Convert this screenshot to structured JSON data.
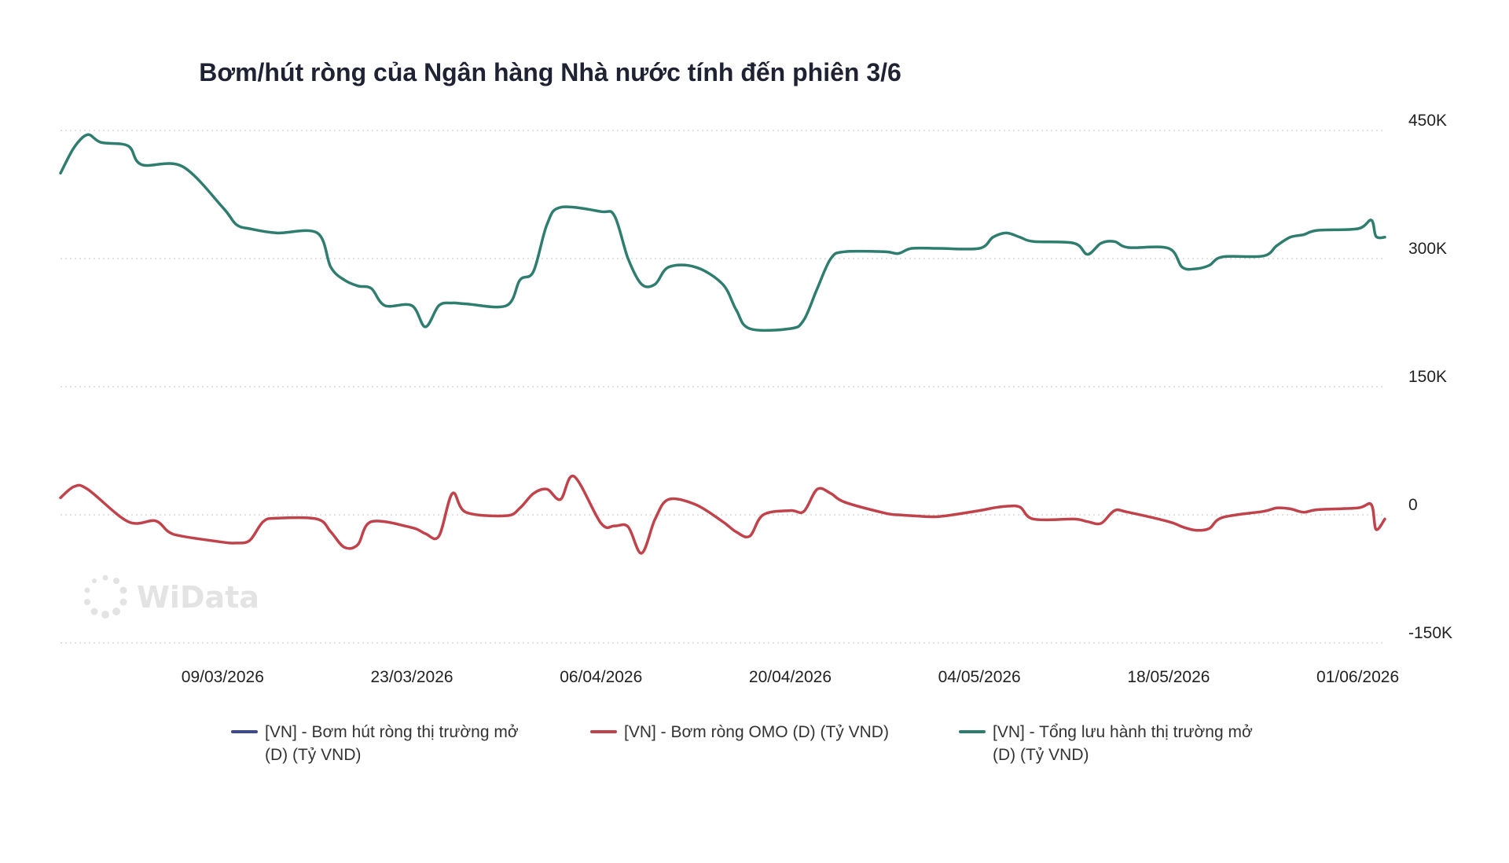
{
  "chart_data": {
    "type": "line",
    "title": "Bơm/hút ròng của Ngân hàng Nhà nước tính đến phiên 3/6",
    "xlabel": "",
    "ylabel": "",
    "x_range": [
      "2026-02-25",
      "2026-06-03"
    ],
    "ylim": [
      -150000,
      450000
    ],
    "y_ticks": [
      {
        "value": 450000,
        "label": "450K"
      },
      {
        "value": 300000,
        "label": "300K"
      },
      {
        "value": 150000,
        "label": "150K"
      },
      {
        "value": 0,
        "label": "0"
      },
      {
        "value": -150000,
        "label": "-150K"
      }
    ],
    "x_ticks": [
      {
        "date": "2026-03-09",
        "label": "09/03/2026"
      },
      {
        "date": "2026-03-23",
        "label": "23/03/2026"
      },
      {
        "date": "2026-04-06",
        "label": "06/04/2026"
      },
      {
        "date": "2026-04-20",
        "label": "20/04/2026"
      },
      {
        "date": "2026-05-04",
        "label": "04/05/2026"
      },
      {
        "date": "2026-05-18",
        "label": "18/05/2026"
      },
      {
        "date": "2026-06-01",
        "label": "01/06/2026"
      }
    ],
    "grid": "horizontal dotted",
    "y_axis_side": "right",
    "legend_position": "bottom",
    "series": [
      {
        "name": "[VN] - Bơm hút ròng thị trường mở (D) (Tỷ VND)",
        "legend_lines": [
          "[VN] - Bơm hút ròng thị trường mở",
          "(D) (Tỷ VND)"
        ],
        "color": "#3d4a8f",
        "points": []
      },
      {
        "name": "[VN] - Bơm ròng OMO (D) (Tỷ VND)",
        "legend_lines": [
          "[VN] - Bơm ròng OMO (D) (Tỷ VND)"
        ],
        "color": "#c0434b",
        "points": [
          [
            "2026-02-25",
            20000
          ],
          [
            "2026-02-26",
            33000
          ],
          [
            "2026-02-27",
            30000
          ],
          [
            "2026-03-02",
            -8000
          ],
          [
            "2026-03-04",
            -7000
          ],
          [
            "2026-03-05",
            -20000
          ],
          [
            "2026-03-06",
            -25000
          ],
          [
            "2026-03-09",
            -32000
          ],
          [
            "2026-03-10",
            -33000
          ],
          [
            "2026-03-11",
            -30000
          ],
          [
            "2026-03-12",
            -8000
          ],
          [
            "2026-03-13",
            -4000
          ],
          [
            "2026-03-16",
            -5000
          ],
          [
            "2026-03-17",
            -20000
          ],
          [
            "2026-03-18",
            -38000
          ],
          [
            "2026-03-19",
            -35000
          ],
          [
            "2026-03-20",
            -8000
          ],
          [
            "2026-03-23",
            -15000
          ],
          [
            "2026-03-24",
            -22000
          ],
          [
            "2026-03-25",
            -25000
          ],
          [
            "2026-03-26",
            25000
          ],
          [
            "2026-03-27",
            3000
          ],
          [
            "2026-03-30",
            -1000
          ],
          [
            "2026-03-31",
            8000
          ],
          [
            "2026-04-01",
            25000
          ],
          [
            "2026-04-02",
            30000
          ],
          [
            "2026-04-03",
            18000
          ],
          [
            "2026-04-04",
            45000
          ],
          [
            "2026-04-06",
            -10000
          ],
          [
            "2026-04-07",
            -13000
          ],
          [
            "2026-04-08",
            -14000
          ],
          [
            "2026-04-09",
            -45000
          ],
          [
            "2026-04-10",
            -5000
          ],
          [
            "2026-04-11",
            18000
          ],
          [
            "2026-04-13",
            12000
          ],
          [
            "2026-04-15",
            -8000
          ],
          [
            "2026-04-16",
            -20000
          ],
          [
            "2026-04-17",
            -25000
          ],
          [
            "2026-04-18",
            0
          ],
          [
            "2026-04-20",
            5000
          ],
          [
            "2026-04-21",
            4000
          ],
          [
            "2026-04-22",
            30000
          ],
          [
            "2026-04-23",
            25000
          ],
          [
            "2026-04-24",
            15000
          ],
          [
            "2026-04-27",
            2000
          ],
          [
            "2026-04-28",
            0
          ],
          [
            "2026-04-29",
            -1000
          ],
          [
            "2026-05-01",
            -2000
          ],
          [
            "2026-05-04",
            5000
          ],
          [
            "2026-05-05",
            8000
          ],
          [
            "2026-05-06",
            10000
          ],
          [
            "2026-05-07",
            9000
          ],
          [
            "2026-05-08",
            -5000
          ],
          [
            "2026-05-11",
            -5000
          ],
          [
            "2026-05-12",
            -8000
          ],
          [
            "2026-05-13",
            -10000
          ],
          [
            "2026-05-14",
            5000
          ],
          [
            "2026-05-15",
            3000
          ],
          [
            "2026-05-18",
            -8000
          ],
          [
            "2026-05-19",
            -14000
          ],
          [
            "2026-05-20",
            -18000
          ],
          [
            "2026-05-21",
            -16000
          ],
          [
            "2026-05-22",
            -3000
          ],
          [
            "2026-05-25",
            4000
          ],
          [
            "2026-05-26",
            8000
          ],
          [
            "2026-05-27",
            7000
          ],
          [
            "2026-05-28",
            3000
          ],
          [
            "2026-05-29",
            6000
          ],
          [
            "2026-06-01",
            8000
          ],
          [
            "2026-06-02",
            12000
          ],
          [
            "2026-06-02",
            -17000
          ],
          [
            "2026-06-03",
            -5000
          ]
        ]
      },
      {
        "name": "[VN] - Tổng lưu hành thị trường mở (D) (Tỷ VND)",
        "legend_lines": [
          "[VN] - Tổng lưu hành thị trường mở",
          "(D) (Tỷ VND)"
        ],
        "color": "#2e7d6f",
        "points": [
          [
            "2026-02-25",
            400000
          ],
          [
            "2026-02-26",
            430000
          ],
          [
            "2026-02-27",
            445000
          ],
          [
            "2026-02-28",
            436000
          ],
          [
            "2026-03-02",
            432000
          ],
          [
            "2026-03-03",
            410000
          ],
          [
            "2026-03-06",
            408000
          ],
          [
            "2026-03-09",
            360000
          ],
          [
            "2026-03-10",
            340000
          ],
          [
            "2026-03-11",
            335000
          ],
          [
            "2026-03-13",
            330000
          ],
          [
            "2026-03-16",
            330000
          ],
          [
            "2026-03-17",
            290000
          ],
          [
            "2026-03-18",
            275000
          ],
          [
            "2026-03-19",
            268000
          ],
          [
            "2026-03-20",
            265000
          ],
          [
            "2026-03-21",
            245000
          ],
          [
            "2026-03-23",
            245000
          ],
          [
            "2026-03-24",
            220000
          ],
          [
            "2026-03-25",
            245000
          ],
          [
            "2026-03-26",
            248000
          ],
          [
            "2026-03-27",
            247000
          ],
          [
            "2026-03-30",
            245000
          ],
          [
            "2026-03-31",
            275000
          ],
          [
            "2026-04-01",
            285000
          ],
          [
            "2026-04-02",
            340000
          ],
          [
            "2026-04-03",
            360000
          ],
          [
            "2026-04-06",
            355000
          ],
          [
            "2026-04-07",
            350000
          ],
          [
            "2026-04-08",
            300000
          ],
          [
            "2026-04-09",
            270000
          ],
          [
            "2026-04-10",
            270000
          ],
          [
            "2026-04-11",
            290000
          ],
          [
            "2026-04-13",
            290000
          ],
          [
            "2026-04-15",
            270000
          ],
          [
            "2026-04-16",
            240000
          ],
          [
            "2026-04-17",
            218000
          ],
          [
            "2026-04-20",
            218000
          ],
          [
            "2026-04-21",
            228000
          ],
          [
            "2026-04-22",
            265000
          ],
          [
            "2026-04-23",
            300000
          ],
          [
            "2026-04-24",
            308000
          ],
          [
            "2026-04-27",
            308000
          ],
          [
            "2026-04-28",
            306000
          ],
          [
            "2026-04-29",
            312000
          ],
          [
            "2026-05-01",
            312000
          ],
          [
            "2026-05-04",
            312000
          ],
          [
            "2026-05-05",
            325000
          ],
          [
            "2026-05-06",
            330000
          ],
          [
            "2026-05-07",
            325000
          ],
          [
            "2026-05-08",
            320000
          ],
          [
            "2026-05-11",
            318000
          ],
          [
            "2026-05-12",
            305000
          ],
          [
            "2026-05-13",
            318000
          ],
          [
            "2026-05-14",
            320000
          ],
          [
            "2026-05-15",
            313000
          ],
          [
            "2026-05-18",
            312000
          ],
          [
            "2026-05-19",
            290000
          ],
          [
            "2026-05-20",
            288000
          ],
          [
            "2026-05-21",
            292000
          ],
          [
            "2026-05-22",
            302000
          ],
          [
            "2026-05-25",
            303000
          ],
          [
            "2026-05-26",
            315000
          ],
          [
            "2026-05-27",
            325000
          ],
          [
            "2026-05-28",
            328000
          ],
          [
            "2026-05-29",
            333000
          ],
          [
            "2026-06-01",
            335000
          ],
          [
            "2026-06-02",
            345000
          ],
          [
            "2026-06-02",
            326000
          ],
          [
            "2026-06-03",
            325000
          ]
        ]
      }
    ]
  },
  "watermark": {
    "text": "WiData"
  }
}
